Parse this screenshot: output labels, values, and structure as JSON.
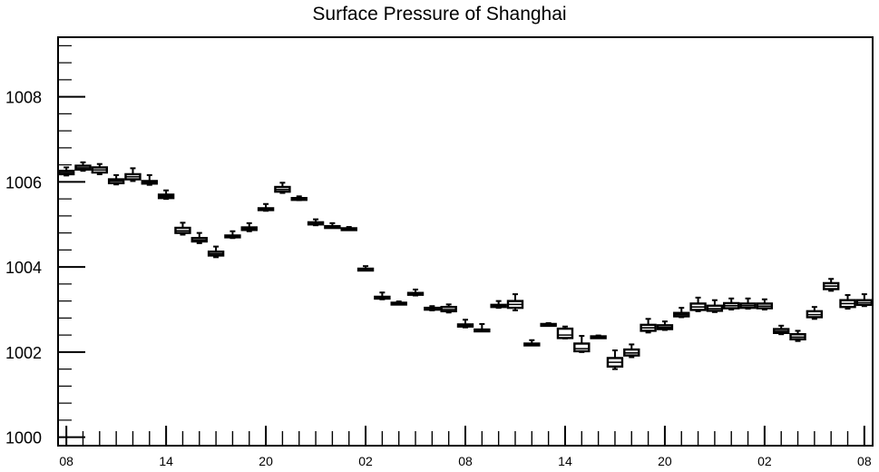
{
  "chart_data": {
    "type": "boxplot",
    "title": "Surface Pressure of Shanghai",
    "xlabel": "",
    "ylabel": "",
    "ylim": [
      999.8,
      1009.4
    ],
    "y_ticks": [
      1000,
      1002,
      1004,
      1006,
      1008
    ],
    "y_tick_labels": [
      "1000",
      "1002",
      "1004",
      "1006",
      "1008"
    ],
    "xlim": [
      -0.5,
      48.5
    ],
    "x_tick_positions": [
      0,
      6,
      12,
      18,
      24,
      30,
      36,
      42,
      48
    ],
    "x_tick_labels": [
      "08",
      "14",
      "20",
      "02",
      "08",
      "14",
      "20",
      "02",
      "08"
    ],
    "grid": false,
    "boxes": [
      {
        "x": 0,
        "whisker_low": 1006.15,
        "q1": 1006.18,
        "median": 1006.22,
        "q3": 1006.26,
        "whisker_high": 1006.34
      },
      {
        "x": 1,
        "whisker_low": 1006.26,
        "q1": 1006.29,
        "median": 1006.33,
        "q3": 1006.38,
        "whisker_high": 1006.46
      },
      {
        "x": 2,
        "whisker_low": 1006.18,
        "q1": 1006.22,
        "median": 1006.28,
        "q3": 1006.34,
        "whisker_high": 1006.42
      },
      {
        "x": 3,
        "whisker_low": 1005.94,
        "q1": 1005.97,
        "median": 1006.02,
        "q3": 1006.06,
        "whisker_high": 1006.16
      },
      {
        "x": 4,
        "whisker_low": 1006.02,
        "q1": 1006.06,
        "median": 1006.12,
        "q3": 1006.18,
        "whisker_high": 1006.32
      },
      {
        "x": 5,
        "whisker_low": 1005.93,
        "q1": 1005.96,
        "median": 1005.99,
        "q3": 1006.02,
        "whisker_high": 1006.16
      },
      {
        "x": 6,
        "whisker_low": 1005.6,
        "q1": 1005.62,
        "median": 1005.66,
        "q3": 1005.7,
        "whisker_high": 1005.8
      },
      {
        "x": 7,
        "whisker_low": 1004.76,
        "q1": 1004.8,
        "median": 1004.85,
        "q3": 1004.92,
        "whisker_high": 1005.04
      },
      {
        "x": 8,
        "whisker_low": 1004.56,
        "q1": 1004.6,
        "median": 1004.63,
        "q3": 1004.68,
        "whisker_high": 1004.8
      },
      {
        "x": 9,
        "whisker_low": 1004.23,
        "q1": 1004.27,
        "median": 1004.31,
        "q3": 1004.36,
        "whisker_high": 1004.48
      },
      {
        "x": 10,
        "whisker_low": 1004.68,
        "q1": 1004.7,
        "median": 1004.72,
        "q3": 1004.74,
        "whisker_high": 1004.84
      },
      {
        "x": 11,
        "whisker_low": 1004.84,
        "q1": 1004.87,
        "median": 1004.9,
        "q3": 1004.93,
        "whisker_high": 1005.03
      },
      {
        "x": 12,
        "whisker_low": 1005.32,
        "q1": 1005.34,
        "median": 1005.36,
        "q3": 1005.38,
        "whisker_high": 1005.48
      },
      {
        "x": 13,
        "whisker_low": 1005.74,
        "q1": 1005.77,
        "median": 1005.82,
        "q3": 1005.88,
        "whisker_high": 1005.98
      },
      {
        "x": 14,
        "whisker_low": 1005.57,
        "q1": 1005.59,
        "median": 1005.6,
        "q3": 1005.62,
        "whisker_high": 1005.66
      },
      {
        "x": 15,
        "whisker_low": 1004.98,
        "q1": 1005.0,
        "median": 1005.02,
        "q3": 1005.05,
        "whisker_high": 1005.12
      },
      {
        "x": 16,
        "whisker_low": 1004.92,
        "q1": 1004.94,
        "median": 1004.95,
        "q3": 1004.96,
        "whisker_high": 1005.03
      },
      {
        "x": 17,
        "whisker_low": 1004.87,
        "q1": 1004.88,
        "median": 1004.9,
        "q3": 1004.91,
        "whisker_high": 1004.94
      },
      {
        "x": 18,
        "whisker_low": 1003.92,
        "q1": 1003.93,
        "median": 1003.95,
        "q3": 1003.96,
        "whisker_high": 1004.02
      },
      {
        "x": 19,
        "whisker_low": 1003.24,
        "q1": 1003.26,
        "median": 1003.28,
        "q3": 1003.3,
        "whisker_high": 1003.4
      },
      {
        "x": 20,
        "whisker_low": 1003.12,
        "q1": 1003.13,
        "median": 1003.15,
        "q3": 1003.16,
        "whisker_high": 1003.19
      },
      {
        "x": 21,
        "whisker_low": 1003.33,
        "q1": 1003.35,
        "median": 1003.37,
        "q3": 1003.39,
        "whisker_high": 1003.47
      },
      {
        "x": 22,
        "whisker_low": 1002.98,
        "q1": 1003.0,
        "median": 1003.02,
        "q3": 1003.04,
        "whisker_high": 1003.08
      },
      {
        "x": 23,
        "whisker_low": 1002.93,
        "q1": 1002.96,
        "median": 1003.0,
        "q3": 1003.06,
        "whisker_high": 1003.12
      },
      {
        "x": 24,
        "whisker_low": 1002.58,
        "q1": 1002.6,
        "median": 1002.62,
        "q3": 1002.65,
        "whisker_high": 1002.76
      },
      {
        "x": 25,
        "whisker_low": 1002.5,
        "q1": 1002.51,
        "median": 1002.52,
        "q3": 1002.53,
        "whisker_high": 1002.66
      },
      {
        "x": 26,
        "whisker_low": 1003.04,
        "q1": 1003.06,
        "median": 1003.08,
        "q3": 1003.11,
        "whisker_high": 1003.2
      },
      {
        "x": 27,
        "whisker_low": 1002.98,
        "q1": 1003.04,
        "median": 1003.12,
        "q3": 1003.2,
        "whisker_high": 1003.36
      },
      {
        "x": 28,
        "whisker_low": 1002.16,
        "q1": 1002.17,
        "median": 1002.18,
        "q3": 1002.2,
        "whisker_high": 1002.28
      },
      {
        "x": 29,
        "whisker_low": 1002.62,
        "q1": 1002.63,
        "median": 1002.64,
        "q3": 1002.66,
        "whisker_high": 1002.68
      },
      {
        "x": 30,
        "whisker_low": 1002.32,
        "q1": 1002.33,
        "median": 1002.4,
        "q3": 1002.55,
        "whisker_high": 1002.6
      },
      {
        "x": 31,
        "whisker_low": 1002.0,
        "q1": 1002.02,
        "median": 1002.08,
        "q3": 1002.2,
        "whisker_high": 1002.38
      },
      {
        "x": 32,
        "whisker_low": 1002.34,
        "q1": 1002.35,
        "median": 1002.36,
        "q3": 1002.37,
        "whisker_high": 1002.39
      },
      {
        "x": 33,
        "whisker_low": 1001.6,
        "q1": 1001.66,
        "median": 1001.76,
        "q3": 1001.86,
        "whisker_high": 1002.04
      },
      {
        "x": 34,
        "whisker_low": 1001.88,
        "q1": 1001.92,
        "median": 1001.98,
        "q3": 1002.06,
        "whisker_high": 1002.18
      },
      {
        "x": 35,
        "whisker_low": 1002.46,
        "q1": 1002.5,
        "median": 1002.57,
        "q3": 1002.64,
        "whisker_high": 1002.78
      },
      {
        "x": 36,
        "whisker_low": 1002.52,
        "q1": 1002.54,
        "median": 1002.58,
        "q3": 1002.63,
        "whisker_high": 1002.72
      },
      {
        "x": 37,
        "whisker_low": 1002.82,
        "q1": 1002.84,
        "median": 1002.88,
        "q3": 1002.92,
        "whisker_high": 1003.04
      },
      {
        "x": 38,
        "whisker_low": 1002.96,
        "q1": 1002.99,
        "median": 1003.06,
        "q3": 1003.14,
        "whisker_high": 1003.28
      },
      {
        "x": 39,
        "whisker_low": 1002.94,
        "q1": 1002.97,
        "median": 1003.02,
        "q3": 1003.09,
        "whisker_high": 1003.22
      },
      {
        "x": 40,
        "whisker_low": 1003.0,
        "q1": 1003.03,
        "median": 1003.09,
        "q3": 1003.15,
        "whisker_high": 1003.26
      },
      {
        "x": 41,
        "whisker_low": 1003.02,
        "q1": 1003.04,
        "median": 1003.09,
        "q3": 1003.14,
        "whisker_high": 1003.26
      },
      {
        "x": 42,
        "whisker_low": 1003.0,
        "q1": 1003.03,
        "median": 1003.08,
        "q3": 1003.14,
        "whisker_high": 1003.24
      },
      {
        "x": 43,
        "whisker_low": 1002.42,
        "q1": 1002.45,
        "median": 1002.49,
        "q3": 1002.54,
        "whisker_high": 1002.62
      },
      {
        "x": 44,
        "whisker_low": 1002.26,
        "q1": 1002.3,
        "median": 1002.35,
        "q3": 1002.42,
        "whisker_high": 1002.5
      },
      {
        "x": 45,
        "whisker_low": 1002.78,
        "q1": 1002.82,
        "median": 1002.88,
        "q3": 1002.96,
        "whisker_high": 1003.06
      },
      {
        "x": 46,
        "whisker_low": 1003.44,
        "q1": 1003.48,
        "median": 1003.55,
        "q3": 1003.62,
        "whisker_high": 1003.72
      },
      {
        "x": 47,
        "whisker_low": 1003.02,
        "q1": 1003.06,
        "median": 1003.14,
        "q3": 1003.22,
        "whisker_high": 1003.34
      },
      {
        "x": 48,
        "whisker_low": 1003.08,
        "q1": 1003.11,
        "median": 1003.16,
        "q3": 1003.22,
        "whisker_high": 1003.36
      }
    ],
    "colors": {
      "box_stroke": "#000000",
      "box_fill": "#ffffff",
      "axis": "#000000"
    }
  }
}
